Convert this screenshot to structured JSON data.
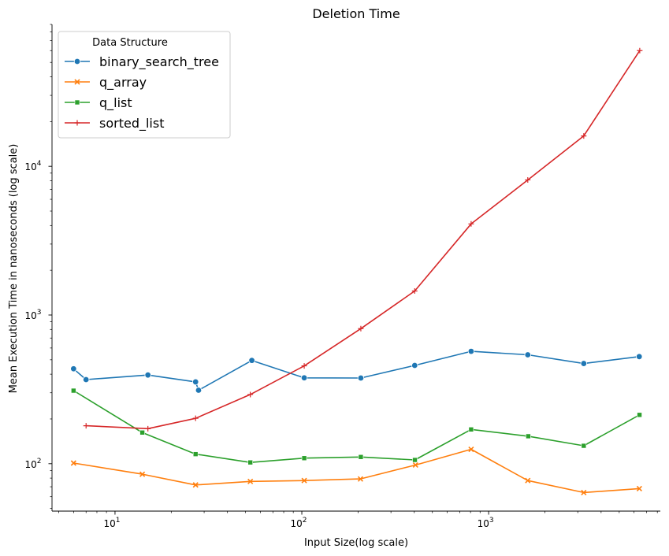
{
  "chart_data": {
    "type": "line",
    "title": "Deletion Time",
    "xlabel": "Input Size(log scale)",
    "ylabel": "Mean Execution Time in nanoseconds (log scale)",
    "xscale": "log",
    "yscale": "log",
    "xlim": [
      4.6,
      8300
    ],
    "ylim": [
      48,
      90000
    ],
    "x_ticks": [
      {
        "value": 10,
        "base": "10",
        "exp": "1"
      },
      {
        "value": 100,
        "base": "10",
        "exp": "2"
      },
      {
        "value": 1000,
        "base": "10",
        "exp": "3"
      }
    ],
    "y_ticks": [
      {
        "value": 100,
        "base": "10",
        "exp": "2"
      },
      {
        "value": 1000,
        "base": "10",
        "exp": "3"
      },
      {
        "value": 10000,
        "base": "10",
        "exp": "4"
      }
    ],
    "grid": false,
    "legend": {
      "title": "Data Structure",
      "placement": "top-left"
    },
    "series": [
      {
        "name": "binary_search_tree",
        "color": "#1f77b4",
        "marker": "circle",
        "points": [
          [
            6,
            435
          ],
          [
            7,
            368
          ],
          [
            15,
            395
          ],
          [
            27,
            355
          ],
          [
            28,
            312
          ],
          [
            54,
            495
          ],
          [
            103,
            378
          ],
          [
            207,
            377
          ],
          [
            402,
            458
          ],
          [
            806,
            570
          ],
          [
            1620,
            540
          ],
          [
            3230,
            472
          ],
          [
            6400,
            525
          ]
        ]
      },
      {
        "name": "q_array",
        "color": "#ff7f0e",
        "marker": "x",
        "points": [
          [
            6,
            101
          ],
          [
            14,
            85
          ],
          [
            27,
            72
          ],
          [
            53,
            76
          ],
          [
            103,
            77
          ],
          [
            206,
            79
          ],
          [
            406,
            98
          ],
          [
            806,
            125
          ],
          [
            1620,
            77
          ],
          [
            3230,
            64
          ],
          [
            6410,
            68
          ]
        ]
      },
      {
        "name": "q_list",
        "color": "#2ca02c",
        "marker": "square",
        "points": [
          [
            6,
            310
          ],
          [
            14,
            162
          ],
          [
            27,
            116
          ],
          [
            53,
            102
          ],
          [
            103,
            109
          ],
          [
            207,
            111
          ],
          [
            403,
            106
          ],
          [
            806,
            170
          ],
          [
            1630,
            153
          ],
          [
            3230,
            132
          ],
          [
            6420,
            213
          ]
        ]
      },
      {
        "name": "sorted_list",
        "color": "#d62728",
        "marker": "plus",
        "points": [
          [
            7,
            180
          ],
          [
            15,
            172
          ],
          [
            27,
            202
          ],
          [
            53,
            292
          ],
          [
            103,
            455
          ],
          [
            207,
            810
          ],
          [
            402,
            1450
          ],
          [
            806,
            4100
          ],
          [
            1620,
            8100
          ],
          [
            3230,
            16000
          ],
          [
            6440,
            60000
          ]
        ]
      }
    ]
  }
}
